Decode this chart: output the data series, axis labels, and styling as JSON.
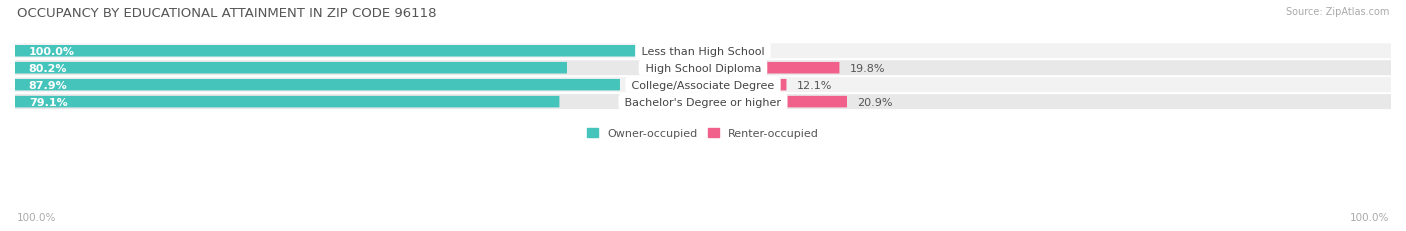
{
  "title": "OCCUPANCY BY EDUCATIONAL ATTAINMENT IN ZIP CODE 96118",
  "source": "Source: ZipAtlas.com",
  "categories": [
    "Less than High School",
    "High School Diploma",
    "College/Associate Degree",
    "Bachelor's Degree or higher"
  ],
  "owner_pct": [
    100.0,
    80.2,
    87.9,
    79.1
  ],
  "renter_pct": [
    0.0,
    19.8,
    12.1,
    20.9
  ],
  "owner_color": "#45c4bc",
  "renter_color": "#f0608a",
  "renter_color_light": "#f5a0b8",
  "row_bg_odd": "#f2f2f2",
  "row_bg_even": "#e8e8e8",
  "label_color": "#444444",
  "title_color": "#555555",
  "source_color": "#aaaaaa",
  "axis_label_color": "#aaaaaa",
  "legend_owner_color": "#45c4bc",
  "legend_renter_color": "#f0608a",
  "x_axis_left": "100.0%",
  "x_axis_right": "100.0%",
  "title_fontsize": 9.5,
  "source_fontsize": 7,
  "bar_label_fontsize": 8,
  "cat_label_fontsize": 8,
  "axis_fontsize": 7.5,
  "legend_fontsize": 8
}
